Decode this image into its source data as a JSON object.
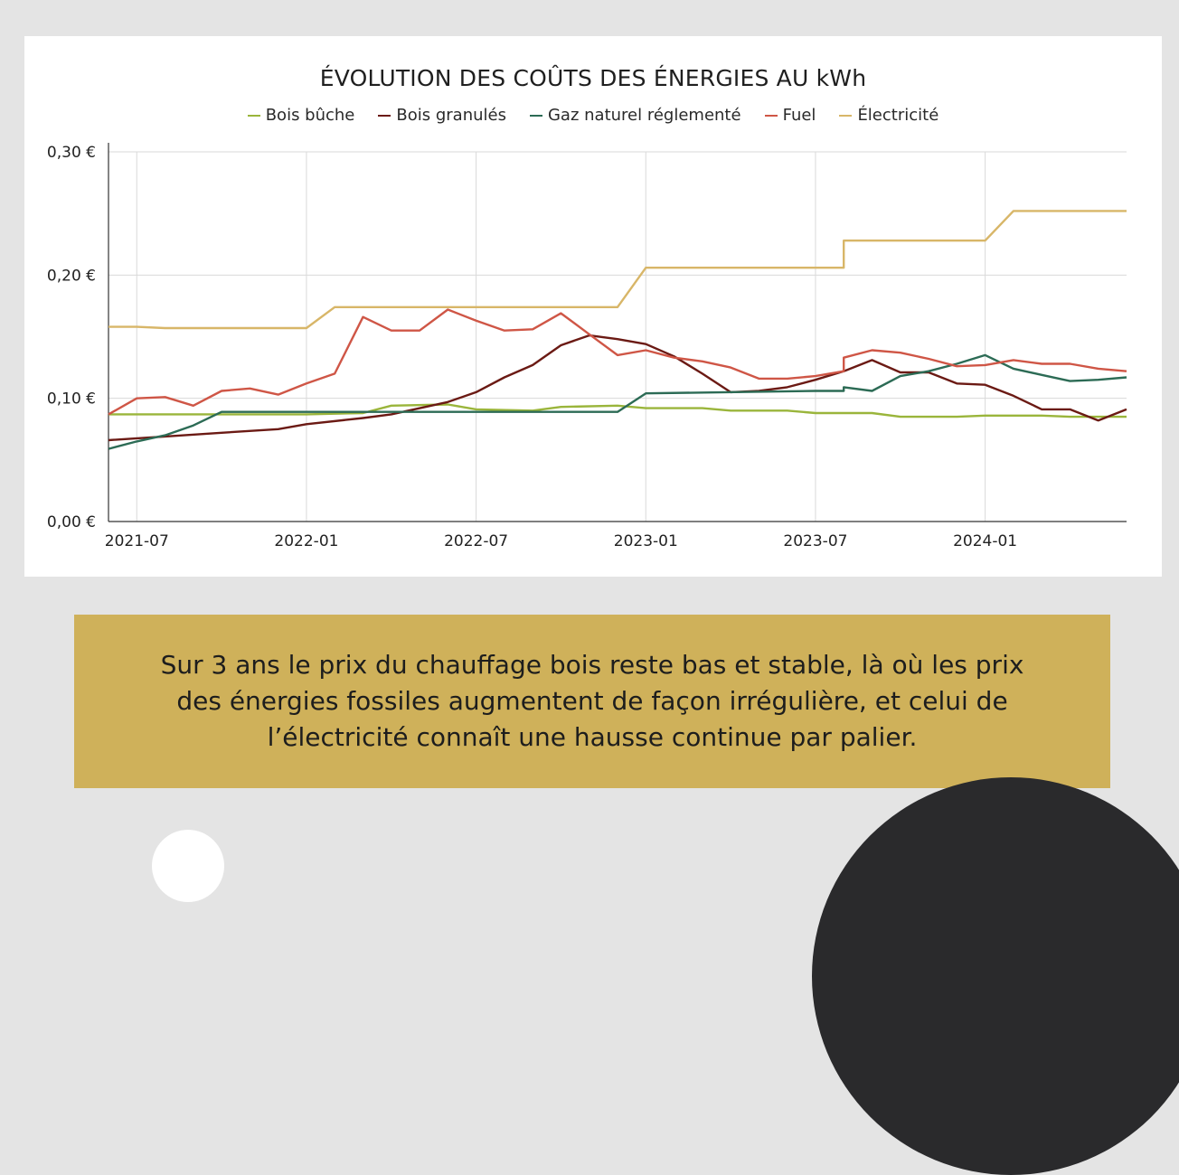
{
  "chart_data": {
    "type": "line",
    "title": "ÉVOLUTION DES COÛTS DES ÉNERGIES AU kWh",
    "xlabel": "",
    "ylabel": "",
    "x_ticks": [
      "2021-07",
      "2022-01",
      "2022-07",
      "2023-01",
      "2023-07",
      "2024-01"
    ],
    "y_ticks": [
      "0,00 €",
      "0,10 €",
      "0,20 €",
      "0,30 €"
    ],
    "ylim": [
      0,
      0.3
    ],
    "xlim": [
      "2021-06",
      "2024-06"
    ],
    "grid": "vertical and horizontal",
    "legend_position": "top",
    "series": [
      {
        "name": "Bois bûche",
        "color": "#9ab53b",
        "points": [
          [
            "2021-06",
            0.087
          ],
          [
            "2021-09",
            0.087
          ],
          [
            "2022-01",
            0.087
          ],
          [
            "2022-03",
            0.088
          ],
          [
            "2022-04",
            0.094
          ],
          [
            "2022-06",
            0.095
          ],
          [
            "2022-07",
            0.091
          ],
          [
            "2022-09",
            0.09
          ],
          [
            "2022-10",
            0.093
          ],
          [
            "2022-12",
            0.094
          ],
          [
            "2023-01",
            0.092
          ],
          [
            "2023-03",
            0.092
          ],
          [
            "2023-04",
            0.09
          ],
          [
            "2023-06",
            0.09
          ],
          [
            "2023-07",
            0.088
          ],
          [
            "2023-09",
            0.088
          ],
          [
            "2023-10",
            0.085
          ],
          [
            "2023-12",
            0.085
          ],
          [
            "2024-01",
            0.086
          ],
          [
            "2024-03",
            0.086
          ],
          [
            "2024-04",
            0.085
          ],
          [
            "2024-06",
            0.085
          ]
        ]
      },
      {
        "name": "Bois granulés",
        "color": "#6b1a14",
        "points": [
          [
            "2021-06",
            0.066
          ],
          [
            "2021-08",
            0.069
          ],
          [
            "2021-10",
            0.072
          ],
          [
            "2021-12",
            0.075
          ],
          [
            "2022-01",
            0.079
          ],
          [
            "2022-03",
            0.084
          ],
          [
            "2022-04",
            0.087
          ],
          [
            "2022-06",
            0.097
          ],
          [
            "2022-07",
            0.105
          ],
          [
            "2022-08",
            0.117
          ],
          [
            "2022-09",
            0.127
          ],
          [
            "2022-10",
            0.143
          ],
          [
            "2022-11",
            0.151
          ],
          [
            "2022-12",
            0.148
          ],
          [
            "2023-01",
            0.144
          ],
          [
            "2023-02",
            0.134
          ],
          [
            "2023-03",
            0.12
          ],
          [
            "2023-04",
            0.105
          ],
          [
            "2023-05",
            0.106
          ],
          [
            "2023-06",
            0.109
          ],
          [
            "2023-07",
            0.115
          ],
          [
            "2023-08",
            0.122
          ],
          [
            "2023-09",
            0.131
          ],
          [
            "2023-10",
            0.121
          ],
          [
            "2023-11",
            0.121
          ],
          [
            "2023-12",
            0.112
          ],
          [
            "2024-01",
            0.111
          ],
          [
            "2024-02",
            0.102
          ],
          [
            "2024-03",
            0.091
          ],
          [
            "2024-04",
            0.091
          ],
          [
            "2024-05",
            0.082
          ],
          [
            "2024-06",
            0.091
          ]
        ]
      },
      {
        "name": "Gaz naturel réglementé",
        "color": "#2c6b55",
        "points": [
          [
            "2021-06",
            0.059
          ],
          [
            "2021-07",
            0.065
          ],
          [
            "2021-08",
            0.07
          ],
          [
            "2021-09",
            0.078
          ],
          [
            "2021-10",
            0.089
          ],
          [
            "2022-01",
            0.089
          ],
          [
            "2022-06",
            0.089
          ],
          [
            "2022-12",
            0.089
          ],
          [
            "2023-01",
            0.104
          ],
          [
            "2023-07",
            0.106
          ],
          [
            "2023-08",
            0.106
          ],
          [
            "2023-08",
            0.109
          ],
          [
            "2023-09",
            0.106
          ],
          [
            "2023-10",
            0.118
          ],
          [
            "2023-11",
            0.122
          ],
          [
            "2023-12",
            0.128
          ],
          [
            "2024-01",
            0.135
          ],
          [
            "2024-02",
            0.124
          ],
          [
            "2024-03",
            0.119
          ],
          [
            "2024-04",
            0.114
          ],
          [
            "2024-05",
            0.115
          ],
          [
            "2024-06",
            0.117
          ]
        ]
      },
      {
        "name": "Fuel",
        "color": "#cf5646",
        "points": [
          [
            "2021-06",
            0.087
          ],
          [
            "2021-07",
            0.1
          ],
          [
            "2021-08",
            0.101
          ],
          [
            "2021-09",
            0.094
          ],
          [
            "2021-10",
            0.106
          ],
          [
            "2021-11",
            0.108
          ],
          [
            "2021-12",
            0.103
          ],
          [
            "2022-01",
            0.112
          ],
          [
            "2022-02",
            0.12
          ],
          [
            "2022-03",
            0.166
          ],
          [
            "2022-04",
            0.155
          ],
          [
            "2022-05",
            0.155
          ],
          [
            "2022-06",
            0.172
          ],
          [
            "2022-07",
            0.163
          ],
          [
            "2022-08",
            0.155
          ],
          [
            "2022-09",
            0.156
          ],
          [
            "2022-10",
            0.169
          ],
          [
            "2022-11",
            0.152
          ],
          [
            "2022-12",
            0.135
          ],
          [
            "2023-01",
            0.139
          ],
          [
            "2023-02",
            0.133
          ],
          [
            "2023-03",
            0.13
          ],
          [
            "2023-04",
            0.125
          ],
          [
            "2023-05",
            0.116
          ],
          [
            "2023-06",
            0.116
          ],
          [
            "2023-07",
            0.118
          ],
          [
            "2023-08",
            0.122
          ],
          [
            "2023-08",
            0.133
          ],
          [
            "2023-09",
            0.139
          ],
          [
            "2023-10",
            0.137
          ],
          [
            "2023-11",
            0.132
          ],
          [
            "2023-12",
            0.126
          ],
          [
            "2024-01",
            0.127
          ],
          [
            "2024-02",
            0.131
          ],
          [
            "2024-03",
            0.128
          ],
          [
            "2024-04",
            0.128
          ],
          [
            "2024-05",
            0.124
          ],
          [
            "2024-06",
            0.122
          ]
        ]
      },
      {
        "name": "Électricité",
        "color": "#d8b668",
        "points": [
          [
            "2021-06",
            0.158
          ],
          [
            "2021-07",
            0.158
          ],
          [
            "2021-08",
            0.157
          ],
          [
            "2022-01",
            0.157
          ],
          [
            "2022-02",
            0.174
          ],
          [
            "2022-12",
            0.174
          ],
          [
            "2023-01",
            0.206
          ],
          [
            "2023-08",
            0.206
          ],
          [
            "2023-08",
            0.228
          ],
          [
            "2024-01",
            0.228
          ],
          [
            "2024-02",
            0.252
          ],
          [
            "2024-06",
            0.252
          ]
        ]
      }
    ]
  },
  "caption": {
    "line1": "Sur 3 ans le prix du chauffage bois reste bas et stable, là où les prix",
    "line2": "des énergies fossiles augmentent de façon irrégulière, et celui de",
    "line3": "l’électricité connaît une hausse continue par palier."
  }
}
